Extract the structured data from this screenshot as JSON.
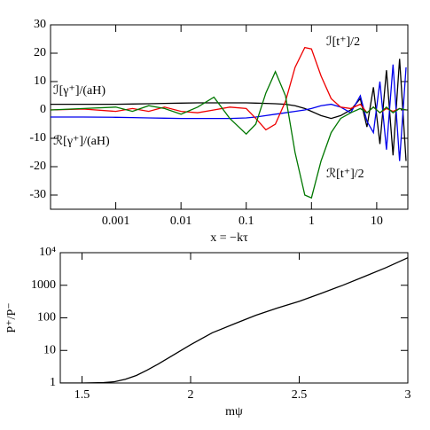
{
  "chart_data": [
    {
      "type": "line",
      "x_label": "x = −kτ",
      "xlog": true,
      "xlim": [
        0.0001,
        30
      ],
      "xticks": [
        0.001,
        0.01,
        0.1,
        1,
        10
      ],
      "ylim": [
        -35,
        30
      ],
      "yticks": [
        -30,
        -20,
        -10,
        0,
        10,
        20,
        30
      ],
      "x": [
        0.0001,
        0.00032,
        0.001,
        0.0018,
        0.0032,
        0.0056,
        0.01,
        0.018,
        0.032,
        0.056,
        0.1,
        0.14,
        0.2,
        0.28,
        0.4,
        0.56,
        0.79,
        1,
        1.4,
        2,
        2.8,
        4,
        5.6,
        7.1,
        8.9,
        11.2,
        14.1,
        17.8,
        22.4,
        28.2
      ],
      "series": [
        {
          "name": "ℐ[γ⁺]/(aH)",
          "color": "#000000",
          "values": [
            2,
            2,
            2,
            2.1,
            2.2,
            2.3,
            2.4,
            2.5,
            2.5,
            2.5,
            2.5,
            2.4,
            2.3,
            2.2,
            2,
            1.5,
            0.5,
            -0.5,
            -2,
            -3,
            -2,
            0,
            4,
            -6,
            8,
            -12,
            14,
            -16,
            18,
            -18
          ]
        },
        {
          "name": "ℛ[γ⁺]/(aH)",
          "color": "#0000ee",
          "values": [
            -2.5,
            -2.5,
            -2.6,
            -2.7,
            -2.8,
            -2.9,
            -3,
            -3,
            -3,
            -3,
            -2.8,
            -2.5,
            -2,
            -1.5,
            -1,
            -0.5,
            0,
            0.5,
            1.5,
            2,
            1,
            -1,
            5,
            -4,
            -8,
            10,
            -14,
            16,
            -18,
            15
          ]
        },
        {
          "name": "ℐ[t⁺]/2",
          "color": "#ee0000",
          "values": [
            0,
            0.3,
            -0.5,
            0.5,
            -0.5,
            1,
            -0.5,
            -1,
            0,
            1,
            0.5,
            -3,
            -7,
            -5,
            3,
            15,
            22,
            21.5,
            12,
            4,
            1,
            0.5,
            2,
            -1,
            1,
            -1,
            0.5,
            -0.5,
            0.5,
            0
          ]
        },
        {
          "name": "ℛ[t⁺]/2",
          "color": "#007700",
          "values": [
            0,
            0.5,
            1,
            -0.5,
            1.5,
            0.5,
            -1.5,
            1,
            4.5,
            -3,
            -8.5,
            -5,
            6,
            13.5,
            5,
            -15,
            -30,
            -31,
            -18,
            -8,
            -3,
            -1,
            0.5,
            -1,
            1,
            -1,
            1,
            -1,
            0.5,
            0
          ]
        }
      ]
    },
    {
      "type": "line",
      "x_label": "mψ",
      "y_label": "P⁺/P⁻",
      "ylog": true,
      "xlim": [
        1.4,
        3
      ],
      "xticks": [
        1.5,
        2,
        2.5,
        3
      ],
      "ylim": [
        1,
        10000
      ],
      "yticks": [
        1,
        10,
        100,
        1000,
        {
          "value": 10000,
          "label": "10⁴"
        }
      ],
      "x": [
        1.4,
        1.5,
        1.6,
        1.65,
        1.7,
        1.75,
        1.8,
        1.85,
        1.9,
        2.0,
        2.1,
        2.2,
        2.3,
        2.4,
        2.5,
        2.6,
        2.7,
        2.8,
        2.9,
        3.0
      ],
      "color": "#000000",
      "values": [
        1,
        1,
        1.03,
        1.1,
        1.3,
        1.7,
        2.5,
        3.8,
        6,
        15,
        35,
        65,
        120,
        200,
        320,
        560,
        1000,
        1850,
        3500,
        7000
      ]
    }
  ]
}
